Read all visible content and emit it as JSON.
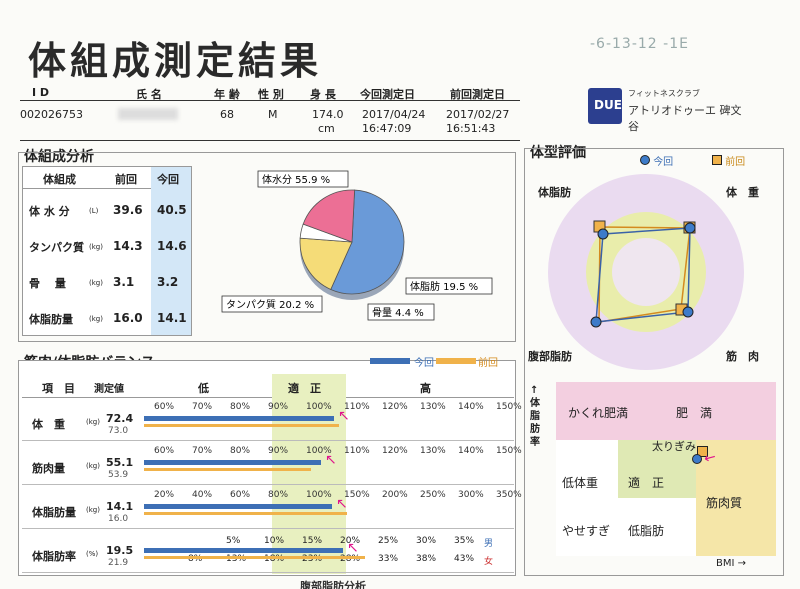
{
  "title": "体組成測定結果",
  "stamp": "-6-13-12 -1E",
  "header": {
    "cols": [
      "I D",
      "氏 名",
      "年 齢",
      "性 別",
      "身 長",
      "今回測定日",
      "前回測定日"
    ],
    "id": "002026753",
    "name": "",
    "age": "68",
    "sex": "M",
    "height": "174.0",
    "height_unit": "cm",
    "current_date": "2017/04/24",
    "current_time": "16:47:09",
    "prev_date": "2017/02/27",
    "prev_time": "16:51:43"
  },
  "logo": {
    "mark": "DUE",
    "small": "フィットネスクラブ",
    "name": "アトリオドゥーエ 碑文谷"
  },
  "composition": {
    "section_title": "体組成分析",
    "headers": [
      "体組成",
      "前回",
      "今回"
    ],
    "rows": [
      {
        "label": "体 水 分",
        "unit": "(L)",
        "prev": "39.6",
        "curr": "40.5"
      },
      {
        "label": "タンパク質",
        "unit": "(kg)",
        "prev": "14.3",
        "curr": "14.6"
      },
      {
        "label": "骨　 量",
        "unit": "(kg)",
        "prev": "3.1",
        "curr": "3.2"
      },
      {
        "label": "体脂肪量",
        "unit": "(kg)",
        "prev": "16.0",
        "curr": "14.1"
      }
    ],
    "pie_labels": [
      "体水分 55.9 %",
      "体脂肪 19.5 %",
      "骨量 4.4 %",
      "タンパク質 20.2 %"
    ]
  },
  "chart_data": {
    "type": "pie",
    "categories": [
      "体水分",
      "体脂肪",
      "骨量",
      "タンパク質"
    ],
    "values": [
      55.9,
      19.5,
      4.4,
      20.2
    ],
    "colors": [
      "#6a9ad8",
      "#f5dc78",
      "#ffffff",
      "#ec6f95"
    ]
  },
  "bodytype": {
    "section_title": "体型評価",
    "legend_now": "今回",
    "legend_prev": "前回",
    "axes": [
      "体脂肪",
      "体　重",
      "腹部脂肪",
      "筋　肉"
    ],
    "grid_labels": [
      "かくれ肥満",
      "肥　満",
      "太りぎみ",
      "低体重",
      "適　正",
      "筋肉質",
      "やせすぎ",
      "低脂肪"
    ],
    "y_label": "↑体脂肪率",
    "x_label": "BMI →"
  },
  "balance": {
    "section_title": "筋肉/体脂肪バランス",
    "legend_now": "今回",
    "legend_prev": "前回",
    "headers": {
      "item": "項　目",
      "value": "測定値",
      "low": "低",
      "normal": "適　正",
      "high": "高"
    },
    "rows": [
      {
        "label": "体　重",
        "unit": "(kg)",
        "curr": "72.4",
        "prev": "73.0",
        "scale": [
          "60%",
          "70%",
          "80%",
          "90%",
          "100%",
          "110%",
          "120%",
          "130%",
          "140%",
          "150%"
        ],
        "curr_frac": 0.525,
        "prev_frac": 0.54
      },
      {
        "label": "筋肉量",
        "unit": "(kg)",
        "curr": "55.1",
        "prev": "53.9",
        "scale": [
          "60%",
          "70%",
          "80%",
          "90%",
          "100%",
          "110%",
          "120%",
          "130%",
          "140%",
          "150%"
        ],
        "curr_frac": 0.49,
        "prev_frac": 0.46
      },
      {
        "label": "体脂肪量",
        "unit": "(kg)",
        "curr": "14.1",
        "prev": "16.0",
        "scale": [
          "20%",
          "40%",
          "60%",
          "80%",
          "100%",
          "150%",
          "200%",
          "250%",
          "300%",
          "350%"
        ],
        "curr_frac": 0.52,
        "prev_frac": 0.56
      },
      {
        "label": "体脂肪率",
        "unit": "(%)",
        "curr": "19.5",
        "prev": "21.9",
        "scale_m": [
          "5%",
          "10%",
          "15%",
          "20%",
          "25%",
          "30%",
          "35%"
        ],
        "scale_f": [
          "8%",
          "13%",
          "18%",
          "23%",
          "28%",
          "33%",
          "38%",
          "43%"
        ],
        "sex_m": "男",
        "sex_f": "女",
        "curr_frac": 0.55,
        "prev_frac": 0.61
      }
    ]
  },
  "footer_partial": "腹部脂肪分析"
}
